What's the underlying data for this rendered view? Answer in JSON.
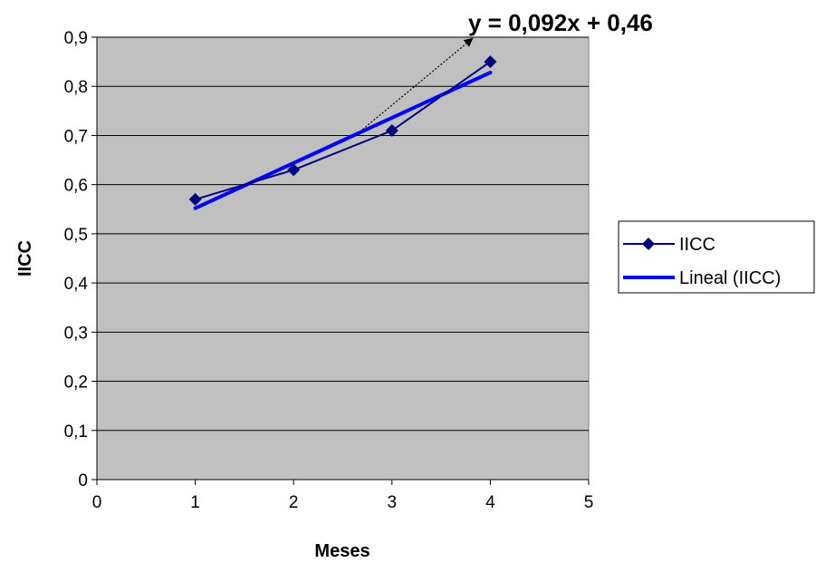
{
  "chart_data": {
    "type": "scatter",
    "xlabel": "Meses",
    "ylabel": "IICC",
    "xlim": [
      0,
      5
    ],
    "ylim": [
      0,
      0.9
    ],
    "x_ticks": [
      0,
      1,
      2,
      3,
      4,
      5
    ],
    "y_ticks": [
      0,
      0.1,
      0.2,
      0.3,
      0.4,
      0.5,
      0.6,
      0.7,
      0.8,
      0.9
    ],
    "x_tick_labels": [
      "0",
      "1",
      "2",
      "3",
      "4",
      "5"
    ],
    "y_tick_labels": [
      "0",
      "0,1",
      "0,2",
      "0,3",
      "0,4",
      "0,5",
      "0,6",
      "0,7",
      "0,8",
      "0,9"
    ],
    "grid": "horizontal",
    "plot_background": "#c0c0c0",
    "series": [
      {
        "name": "IICC",
        "x": [
          1,
          2,
          3,
          4
        ],
        "y": [
          0.57,
          0.63,
          0.71,
          0.85
        ],
        "color": "#000080",
        "marker": "diamond"
      },
      {
        "name": "Lineal (IICC)",
        "kind": "linear-trendline",
        "slope": 0.092,
        "intercept": 0.46,
        "x": [
          1,
          4
        ],
        "color": "#0000ff"
      }
    ],
    "annotations": [
      {
        "text": "y = 0,092x + 0,46"
      }
    ],
    "legend": {
      "position": "right",
      "entries": [
        "IICC",
        "Lineal (IICC)"
      ]
    }
  }
}
